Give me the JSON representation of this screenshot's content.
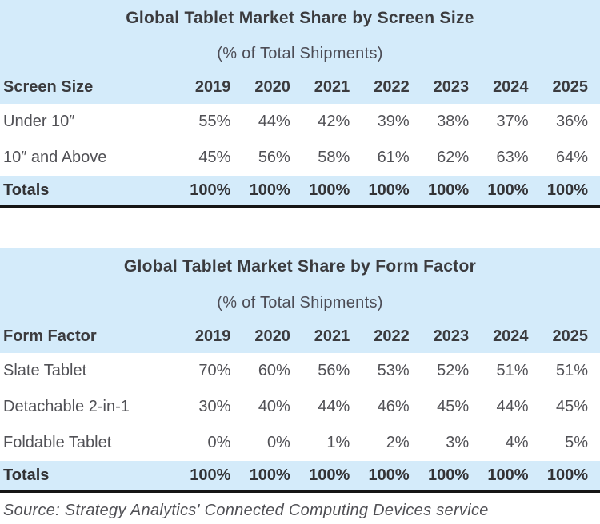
{
  "colors": {
    "band_blue": "#d4ebfa",
    "text_dark": "#3b3b3e",
    "text_body": "#515156",
    "rule_black": "#151515"
  },
  "source_note": "Source: Strategy Analytics' Connected Computing Devices service",
  "tables": [
    {
      "title": "Global Tablet Market Share by Screen Size",
      "subtitle": "(% of Total Shipments)",
      "row_header": "Screen Size",
      "years": [
        "2019",
        "2020",
        "2021",
        "2022",
        "2023",
        "2024",
        "2025"
      ],
      "rows": [
        {
          "label": "Under 10″",
          "values": [
            "55%",
            "44%",
            "42%",
            "39%",
            "38%",
            "37%",
            "36%"
          ]
        },
        {
          "label": "10″ and Above",
          "values": [
            "45%",
            "56%",
            "58%",
            "61%",
            "62%",
            "63%",
            "64%"
          ]
        }
      ],
      "totals": {
        "label": "Totals",
        "values": [
          "100%",
          "100%",
          "100%",
          "100%",
          "100%",
          "100%",
          "100%"
        ]
      }
    },
    {
      "title": "Global Tablet Market Share by Form Factor",
      "subtitle": "(% of Total Shipments)",
      "row_header": "Form Factor",
      "years": [
        "2019",
        "2020",
        "2021",
        "2022",
        "2023",
        "2024",
        "2025"
      ],
      "rows": [
        {
          "label": "Slate Tablet",
          "values": [
            "70%",
            "60%",
            "56%",
            "53%",
            "52%",
            "51%",
            "51%"
          ]
        },
        {
          "label": "Detachable 2-in-1",
          "values": [
            "30%",
            "40%",
            "44%",
            "46%",
            "45%",
            "44%",
            "45%"
          ]
        },
        {
          "label": "Foldable Tablet",
          "values": [
            "0%",
            "0%",
            "1%",
            "2%",
            "3%",
            "4%",
            "5%"
          ]
        }
      ],
      "totals": {
        "label": "Totals",
        "values": [
          "100%",
          "100%",
          "100%",
          "100%",
          "100%",
          "100%",
          "100%"
        ]
      }
    }
  ],
  "chart_data": [
    {
      "type": "table",
      "title": "Global Tablet Market Share by Screen Size",
      "subtitle": "(% of Total Shipments)",
      "unit": "percent of total shipments",
      "categories": [
        "2019",
        "2020",
        "2021",
        "2022",
        "2023",
        "2024",
        "2025"
      ],
      "series": [
        {
          "name": "Under 10″",
          "values": [
            55,
            44,
            42,
            39,
            38,
            37,
            36
          ]
        },
        {
          "name": "10″ and Above",
          "values": [
            45,
            56,
            58,
            61,
            62,
            63,
            64
          ]
        },
        {
          "name": "Totals",
          "values": [
            100,
            100,
            100,
            100,
            100,
            100,
            100
          ]
        }
      ]
    },
    {
      "type": "table",
      "title": "Global Tablet Market Share by Form Factor",
      "subtitle": "(% of Total Shipments)",
      "unit": "percent of total shipments",
      "categories": [
        "2019",
        "2020",
        "2021",
        "2022",
        "2023",
        "2024",
        "2025"
      ],
      "series": [
        {
          "name": "Slate Tablet",
          "values": [
            70,
            60,
            56,
            53,
            52,
            51,
            51
          ]
        },
        {
          "name": "Detachable 2-in-1",
          "values": [
            30,
            40,
            44,
            46,
            45,
            44,
            45
          ]
        },
        {
          "name": "Foldable Tablet",
          "values": [
            0,
            0,
            1,
            2,
            3,
            4,
            5
          ]
        },
        {
          "name": "Totals",
          "values": [
            100,
            100,
            100,
            100,
            100,
            100,
            100
          ]
        }
      ]
    }
  ]
}
